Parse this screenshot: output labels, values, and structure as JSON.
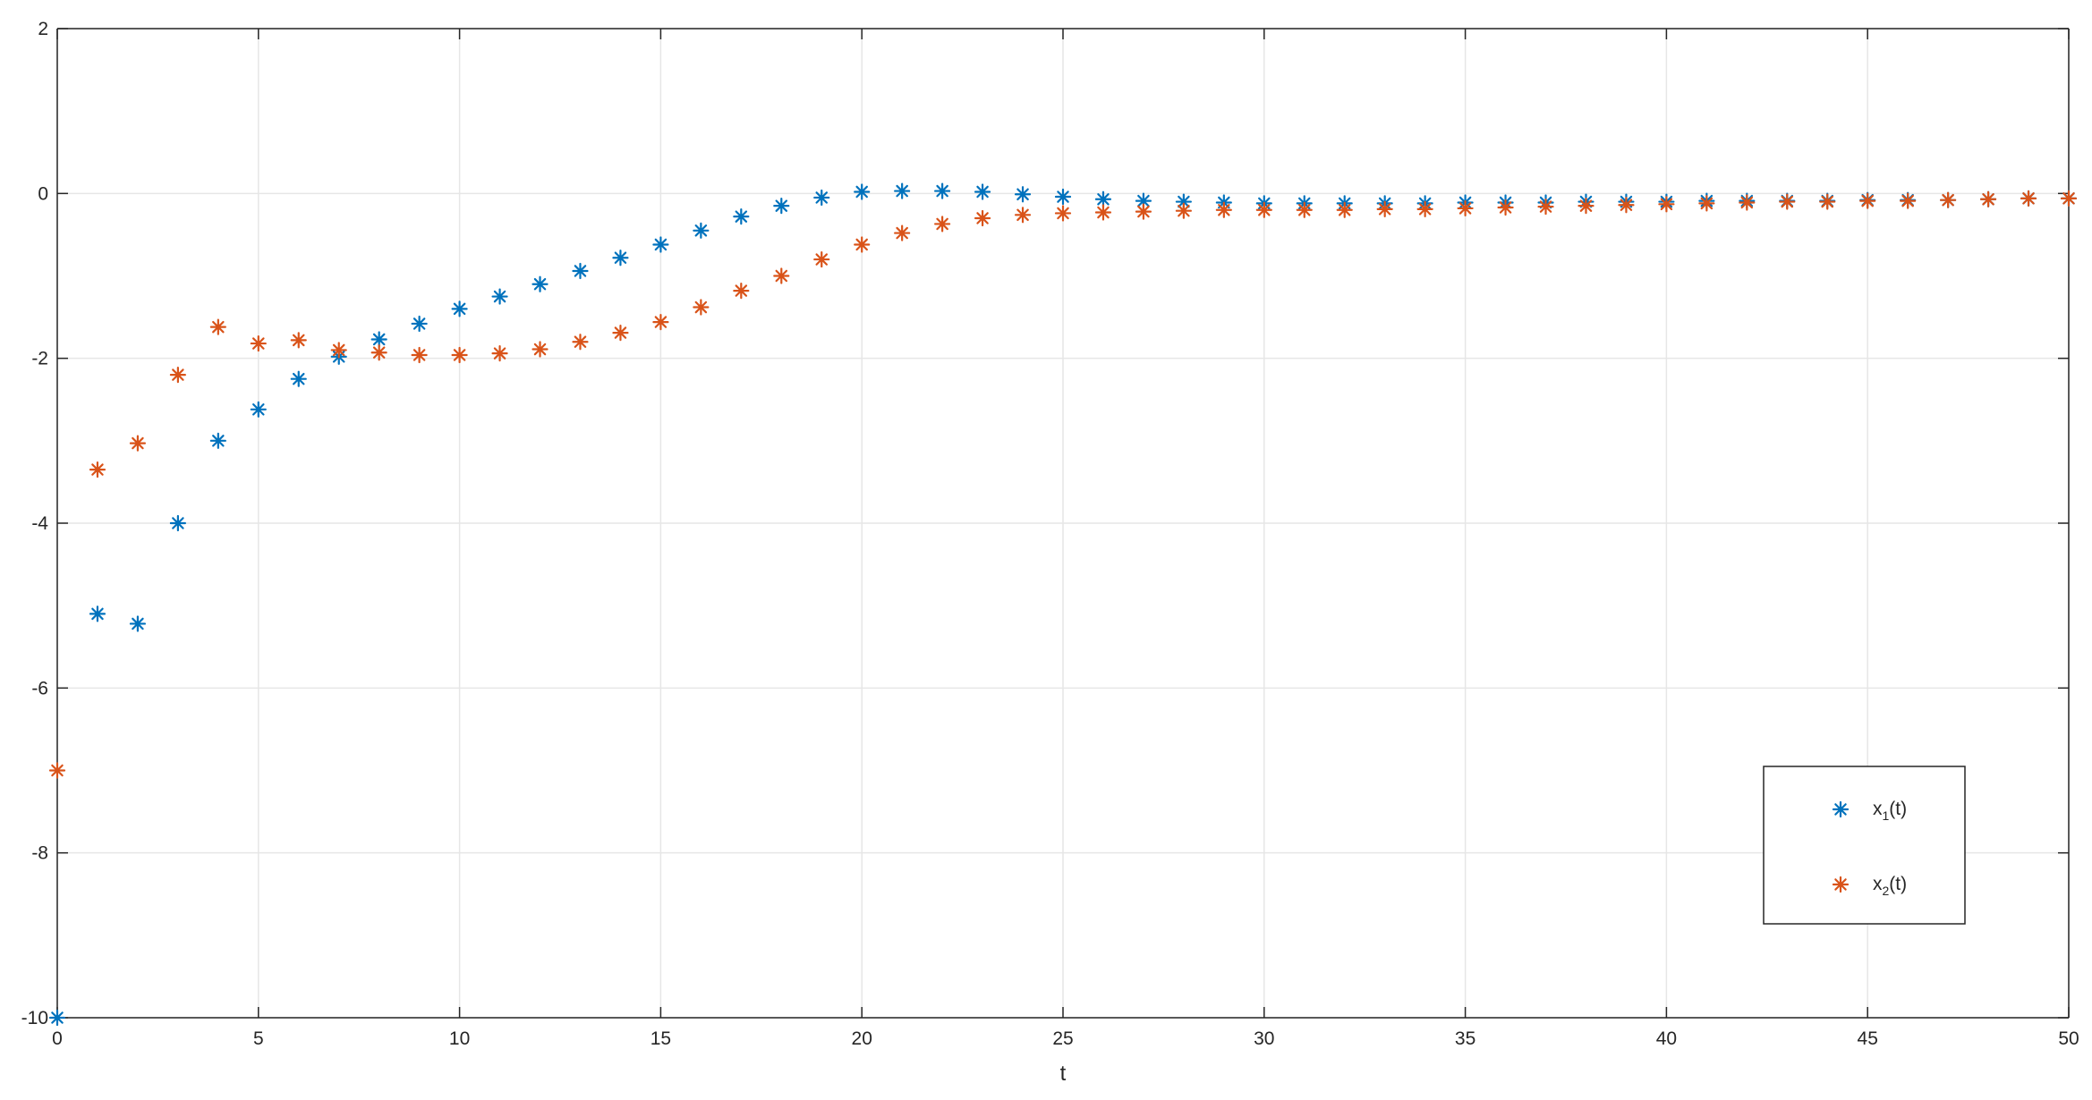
{
  "chart_data": {
    "type": "scatter",
    "marker": "asterisk",
    "xlabel": "t",
    "ylabel": "",
    "title": "",
    "xlim": [
      0,
      50
    ],
    "ylim": [
      -10,
      2
    ],
    "xticks": [
      0,
      5,
      10,
      15,
      20,
      25,
      30,
      35,
      40,
      45,
      50
    ],
    "yticks": [
      -10,
      -8,
      -6,
      -4,
      -2,
      0,
      2
    ],
    "grid": true,
    "legend_position": "bottom-right",
    "x": [
      0,
      1,
      2,
      3,
      4,
      5,
      6,
      7,
      8,
      9,
      10,
      11,
      12,
      13,
      14,
      15,
      16,
      17,
      18,
      19,
      20,
      21,
      22,
      23,
      24,
      25,
      26,
      27,
      28,
      29,
      30,
      31,
      32,
      33,
      34,
      35,
      36,
      37,
      38,
      39,
      40,
      41,
      42,
      43,
      44,
      45,
      46,
      47,
      48,
      49,
      50
    ],
    "series": [
      {
        "name": "x1(t)",
        "legend_main": "x",
        "legend_sub": "1",
        "legend_suffix": "(t)",
        "color": "#0072bd",
        "values": [
          -10.0,
          -5.1,
          -5.22,
          -4.0,
          -3.0,
          -2.62,
          -2.25,
          -1.98,
          -1.77,
          -1.58,
          -1.4,
          -1.25,
          -1.1,
          -0.94,
          -0.78,
          -0.62,
          -0.45,
          -0.28,
          -0.15,
          -0.05,
          0.02,
          0.03,
          0.03,
          0.02,
          -0.01,
          -0.04,
          -0.07,
          -0.09,
          -0.1,
          -0.11,
          -0.12,
          -0.12,
          -0.12,
          -0.12,
          -0.12,
          -0.11,
          -0.11,
          -0.11,
          -0.1,
          -0.1,
          -0.1,
          -0.09,
          -0.09,
          -0.09,
          -0.09,
          -0.08,
          -0.08,
          -0.08,
          -0.07,
          -0.06,
          -0.06
        ]
      },
      {
        "name": "x2(t)",
        "legend_main": "x",
        "legend_sub": "2",
        "legend_suffix": "(t)",
        "color": "#d95319",
        "values": [
          -7.0,
          -3.35,
          -3.03,
          -2.2,
          -1.62,
          -1.82,
          -1.78,
          -1.9,
          -1.93,
          -1.96,
          -1.96,
          -1.94,
          -1.89,
          -1.8,
          -1.69,
          -1.56,
          -1.38,
          -1.18,
          -1.0,
          -0.8,
          -0.62,
          -0.48,
          -0.37,
          -0.3,
          -0.26,
          -0.24,
          -0.23,
          -0.22,
          -0.21,
          -0.2,
          -0.2,
          -0.2,
          -0.2,
          -0.19,
          -0.19,
          -0.18,
          -0.17,
          -0.16,
          -0.15,
          -0.14,
          -0.13,
          -0.12,
          -0.11,
          -0.1,
          -0.1,
          -0.09,
          -0.09,
          -0.08,
          -0.07,
          -0.06,
          -0.06
        ]
      }
    ]
  }
}
